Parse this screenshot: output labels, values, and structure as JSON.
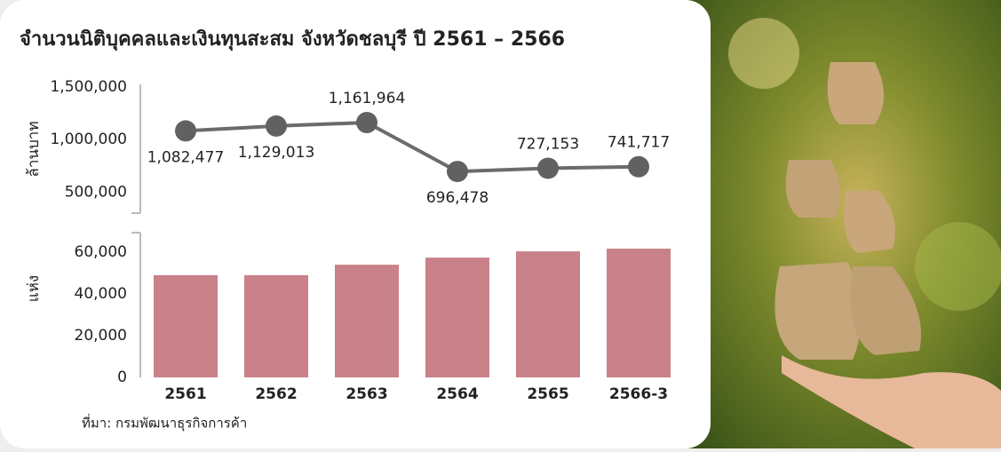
{
  "title": "จำนวนนิติบุคคลและเงินทุนสะสม จังหวัดชลบุรี ปี 2561 – 2566",
  "source": "ที่มา: กรมพัฒนาธุรกิจการค้า",
  "chart_data": [
    {
      "type": "line",
      "y_label": "ล้านบาท",
      "color": "#6b6b6b",
      "values": [
        1082477,
        1129013,
        1161964,
        696478,
        727153,
        741717
      ],
      "value_labels": [
        "1,082,477",
        "1,129,013",
        "1,161,964",
        "696,478",
        "727,153",
        "741,717"
      ],
      "ylim": [
        300000,
        1500000
      ],
      "yticks": [
        {
          "value": 500000,
          "label": "500,000"
        },
        {
          "value": 1000000,
          "label": "1,000,000"
        },
        {
          "value": 1500000,
          "label": "1,500,000"
        }
      ],
      "grid": false
    },
    {
      "type": "bar",
      "y_label": "แห่ง",
      "color": "#c9818a",
      "categories": [
        "2561",
        "2562",
        "2563",
        "2564",
        "2565",
        "2566-3"
      ],
      "values": [
        49000,
        49000,
        54000,
        57400,
        60400,
        61700
      ],
      "ylim": [
        0,
        70000
      ],
      "yticks": [
        0,
        {
          "value": 20000,
          "label": "20,000"
        },
        {
          "value": 40000,
          "label": "40,000"
        },
        {
          "value": 60000,
          "label": "60,000"
        }
      ],
      "grid": false
    }
  ]
}
